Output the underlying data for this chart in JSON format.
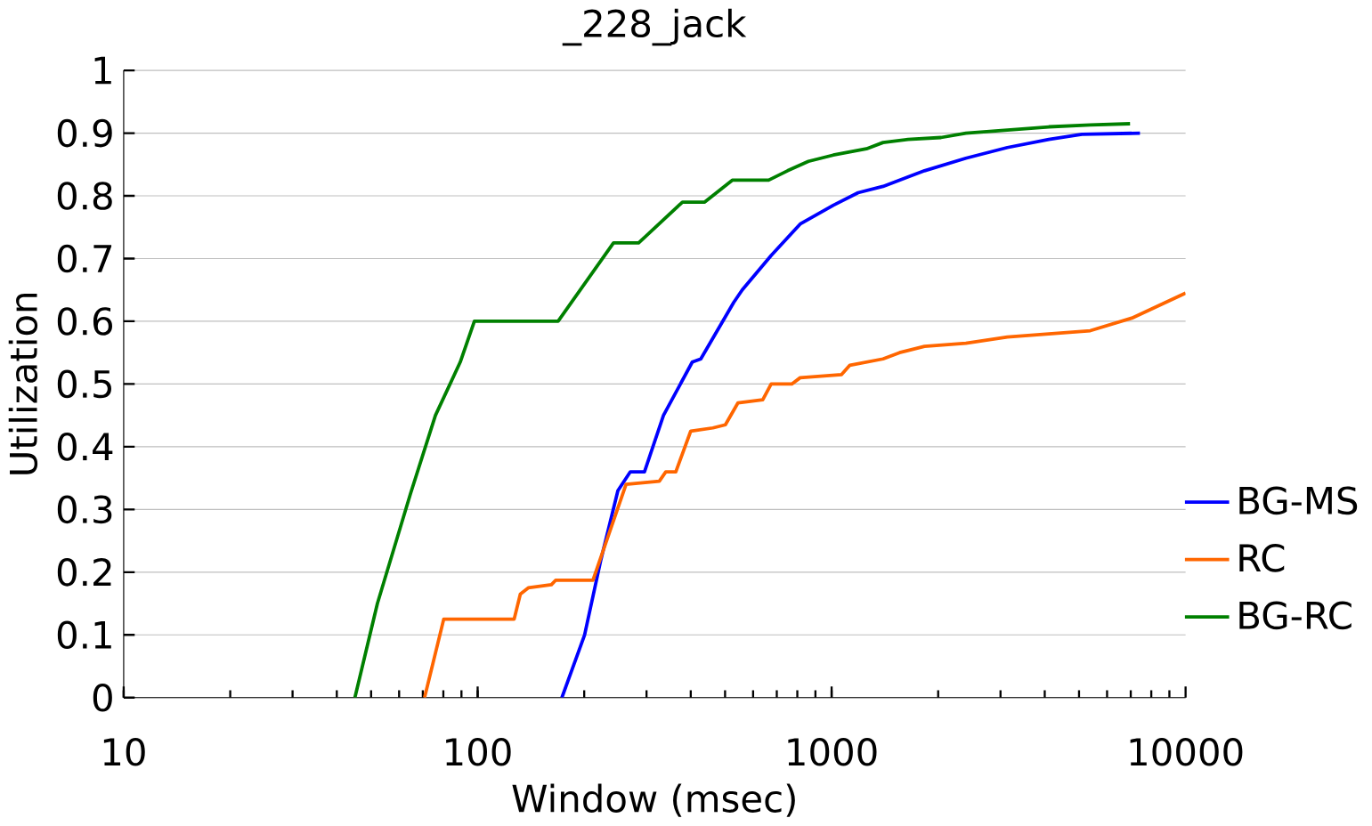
{
  "chart_data": {
    "type": "line",
    "title": "_228_jack",
    "xlabel": "Window (msec)",
    "ylabel": "Utilization",
    "log": "x",
    "xlim": [
      10,
      10000
    ],
    "xticks": [
      10,
      100,
      1000,
      10000
    ],
    "ylim": [
      0,
      1
    ],
    "yticks": [
      0,
      0.1,
      0.2,
      0.3,
      0.4,
      0.5,
      0.6,
      0.7,
      0.8,
      0.9,
      1
    ],
    "grid": "y",
    "legend": "right",
    "marker": "none",
    "line_style": "solid",
    "series": [
      {
        "name": "BG-MS",
        "color": "#0000ff",
        "x": [
          173,
          200.5,
          223,
          249,
          270,
          296,
          335,
          404,
          427,
          529,
          559,
          675,
          815,
          1011,
          1188,
          1397,
          1830,
          2395,
          3137,
          4108,
          5097,
          7433
        ],
        "values": [
          0,
          0.1,
          0.22,
          0.33,
          0.36,
          0.36,
          0.45,
          0.535,
          0.54,
          0.63,
          0.65,
          0.705,
          0.755,
          0.785,
          0.805,
          0.815,
          0.84,
          0.86,
          0.877,
          0.89,
          0.898,
          0.9
        ]
      },
      {
        "name": "RC",
        "color": "#ff6600",
        "x": [
          70.8,
          80.2,
          126.8,
          132,
          139,
          161.6,
          166,
          211.7,
          262.6,
          326,
          340,
          363,
          400,
          462,
          501,
          544,
          639,
          675,
          772,
          815,
          1067,
          1126,
          1397,
          1556,
          1830,
          2395,
          3137,
          4108,
          5379,
          7045,
          10000
        ],
        "values": [
          0,
          0.125,
          0.125,
          0.165,
          0.175,
          0.18,
          0.187,
          0.187,
          0.34,
          0.345,
          0.36,
          0.36,
          0.425,
          0.43,
          0.435,
          0.47,
          0.475,
          0.5,
          0.5,
          0.51,
          0.515,
          0.53,
          0.54,
          0.55,
          0.56,
          0.565,
          0.575,
          0.58,
          0.585,
          0.605,
          0.645
        ]
      },
      {
        "name": "BG-RC",
        "color": "#008000",
        "x": [
          45,
          52.1,
          64.6,
          76,
          89.3,
          97.9,
          168.8,
          242,
          285,
          379,
          438,
          524,
          664,
          751,
          860,
          1011,
          1254,
          1397,
          1643,
          2037,
          2395,
          3137,
          4108,
          5379,
          6969
        ],
        "values": [
          0,
          0.15,
          0.325,
          0.45,
          0.535,
          0.6,
          0.6,
          0.725,
          0.725,
          0.79,
          0.79,
          0.825,
          0.825,
          0.84,
          0.855,
          0.865,
          0.875,
          0.885,
          0.89,
          0.893,
          0.9,
          0.905,
          0.91,
          0.913,
          0.915
        ]
      }
    ]
  }
}
